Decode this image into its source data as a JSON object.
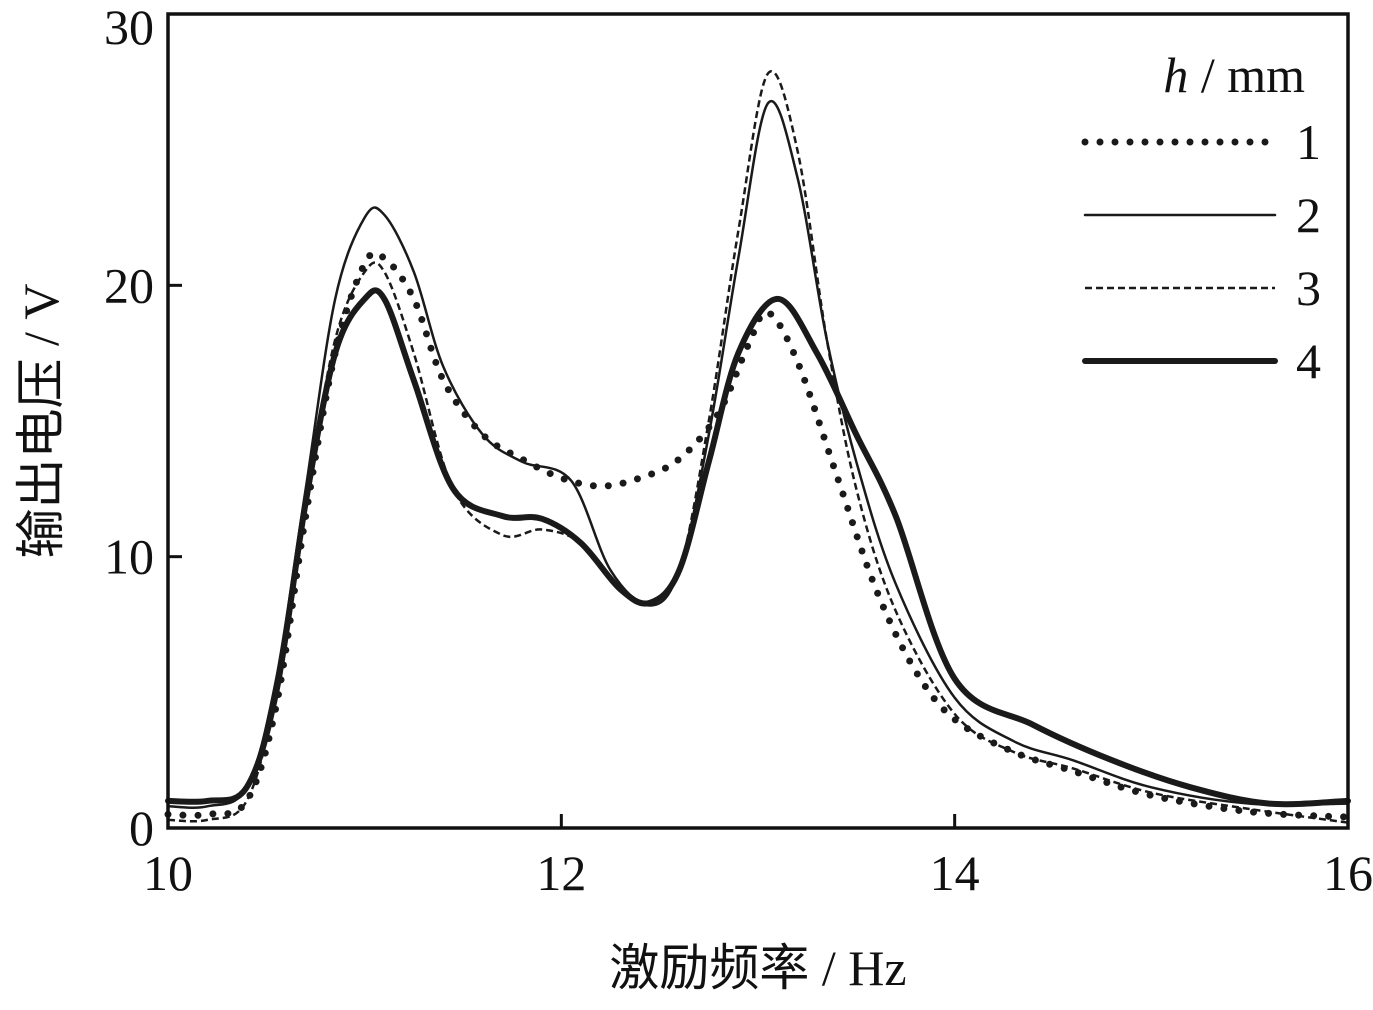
{
  "chart_data": {
    "type": "line",
    "title": "",
    "xlabel": "激励频率 / Hz",
    "ylabel": "输出电压 / V",
    "xlim": [
      10,
      16
    ],
    "ylim": [
      0,
      30
    ],
    "xticks": [
      10,
      12,
      14,
      16
    ],
    "yticks": [
      0,
      10,
      20,
      30
    ],
    "grid": false,
    "legend": {
      "placement": "top-right",
      "title_var": "h",
      "title_unit": " / mm"
    },
    "series": [
      {
        "name": "1",
        "style": "dotted",
        "color": "#1a1a1a",
        "x": [
          10,
          10.2,
          10.4,
          10.55,
          10.7,
          10.85,
          11.0,
          11.1,
          11.25,
          11.4,
          11.6,
          11.8,
          12.0,
          12.2,
          12.4,
          12.6,
          12.8,
          12.95,
          13.05,
          13.2,
          13.4,
          13.6,
          13.8,
          14.0,
          14.3,
          14.6,
          15.0,
          15.5,
          16.0
        ],
        "y": [
          0.5,
          0.5,
          1.0,
          4.5,
          11.5,
          17.5,
          20.8,
          21.0,
          19.5,
          16.5,
          14.5,
          13.6,
          12.9,
          12.6,
          12.9,
          13.6,
          15.3,
          17.8,
          19.0,
          17.2,
          13.0,
          8.8,
          5.8,
          4.0,
          2.8,
          2.1,
          1.2,
          0.6,
          0.4
        ]
      },
      {
        "name": "2",
        "style": "thin",
        "color": "#1a1a1a",
        "x": [
          10,
          10.2,
          10.4,
          10.55,
          10.7,
          10.85,
          11.0,
          11.1,
          11.25,
          11.4,
          11.6,
          11.8,
          12.05,
          12.25,
          12.45,
          12.6,
          12.75,
          12.9,
          13.05,
          13.2,
          13.35,
          13.5,
          13.7,
          14.0,
          14.3,
          14.6,
          15.0,
          15.5,
          16.0
        ],
        "y": [
          0.8,
          0.8,
          1.5,
          5.5,
          12.5,
          19.5,
          22.5,
          22.6,
          20.5,
          17.0,
          14.5,
          13.5,
          12.8,
          9.5,
          8.2,
          9.5,
          14.5,
          21.0,
          26.7,
          24.0,
          18.0,
          13.5,
          9.0,
          4.8,
          3.2,
          2.5,
          1.5,
          0.9,
          0.9
        ]
      },
      {
        "name": "3",
        "style": "dashed",
        "color": "#1a1a1a",
        "x": [
          10,
          10.2,
          10.4,
          10.55,
          10.7,
          10.85,
          11.0,
          11.1,
          11.25,
          11.45,
          11.7,
          11.9,
          12.1,
          12.3,
          12.45,
          12.6,
          12.75,
          12.9,
          13.05,
          13.2,
          13.35,
          13.5,
          13.7,
          14.0,
          14.3,
          14.6,
          15.0,
          15.5,
          16.0
        ],
        "y": [
          0.3,
          0.3,
          1.0,
          5.0,
          12.0,
          18.0,
          20.5,
          20.5,
          17.5,
          12.5,
          10.8,
          11.0,
          10.5,
          8.8,
          8.3,
          9.5,
          15.0,
          22.0,
          27.8,
          25.0,
          18.0,
          12.5,
          8.0,
          4.2,
          2.8,
          2.2,
          1.3,
          0.7,
          0.2
        ]
      },
      {
        "name": "4",
        "style": "thick",
        "color": "#1a1a1a",
        "x": [
          10,
          10.2,
          10.4,
          10.55,
          10.7,
          10.85,
          11.0,
          11.1,
          11.25,
          11.45,
          11.7,
          11.9,
          12.1,
          12.3,
          12.45,
          12.6,
          12.75,
          12.9,
          13.1,
          13.3,
          13.5,
          13.7,
          14.0,
          14.4,
          14.8,
          15.2,
          15.6,
          16.0
        ],
        "y": [
          1.0,
          1.0,
          1.5,
          5.0,
          12.0,
          17.5,
          19.5,
          19.5,
          16.5,
          12.5,
          11.5,
          11.4,
          10.5,
          8.8,
          8.3,
          9.5,
          13.5,
          17.5,
          19.5,
          17.5,
          14.5,
          11.5,
          5.5,
          3.8,
          2.5,
          1.5,
          0.9,
          1.0
        ]
      }
    ]
  }
}
